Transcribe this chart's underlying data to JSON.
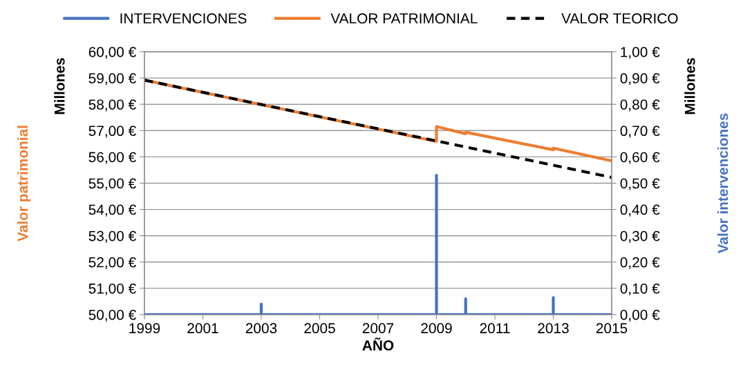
{
  "chart_data": {
    "type": "line",
    "xlabel": "AÑO",
    "ylabel": "Valor patrimonial",
    "y2label": "Valor intervenciones",
    "annotations": [
      "Millones",
      "Millones"
    ],
    "xlim": [
      1999,
      2015
    ],
    "xticks": [
      1999,
      2001,
      2003,
      2005,
      2007,
      2009,
      2011,
      2013,
      2015
    ],
    "ylim": [
      50,
      60
    ],
    "yticks": [
      {
        "value": 50,
        "label": "50,00 €"
      },
      {
        "value": 51,
        "label": "51,00 €"
      },
      {
        "value": 52,
        "label": "52,00 €"
      },
      {
        "value": 53,
        "label": "53,00 €"
      },
      {
        "value": 54,
        "label": "54,00 €"
      },
      {
        "value": 55,
        "label": "55,00 €"
      },
      {
        "value": 56,
        "label": "56,00 €"
      },
      {
        "value": 57,
        "label": "57,00 €"
      },
      {
        "value": 58,
        "label": "58,00 €"
      },
      {
        "value": 59,
        "label": "59,00 €"
      },
      {
        "value": 60,
        "label": "60,00 €"
      }
    ],
    "y2lim": [
      0,
      1
    ],
    "y2ticks": [
      {
        "value": 0,
        "label": "0,00 €"
      },
      {
        "value": 0.1,
        "label": "0,10 €"
      },
      {
        "value": 0.2,
        "label": "0,20 €"
      },
      {
        "value": 0.3,
        "label": "0,30 €"
      },
      {
        "value": 0.4,
        "label": "0,40 €"
      },
      {
        "value": 0.5,
        "label": "0,50 €"
      },
      {
        "value": 0.6,
        "label": "0,60 €"
      },
      {
        "value": 0.7,
        "label": "0,70 €"
      },
      {
        "value": 0.8,
        "label": "0,80 €"
      },
      {
        "value": 0.9,
        "label": "0,90 €"
      },
      {
        "value": 1,
        "label": "1,00 €"
      }
    ],
    "grid": "y",
    "legend": "top",
    "series": [
      {
        "name": "INTERVENCIONES",
        "color": "#4472c4",
        "axis": "y2",
        "line_style": "solid",
        "x": [
          1999,
          2003,
          2003,
          2003,
          2009,
          2009,
          2009,
          2010,
          2010,
          2010,
          2013,
          2013,
          2013,
          2015
        ],
        "values": [
          0,
          0,
          0.04,
          0,
          0,
          0.53,
          0,
          0,
          0.06,
          0,
          0,
          0.065,
          0,
          0
        ]
      },
      {
        "name": "VALOR PATRIMONIAL",
        "color": "#ed7d31",
        "line_style": "solid",
        "x": [
          1999,
          2009,
          2009,
          2010,
          2010,
          2013,
          2013,
          2015
        ],
        "values": [
          58.92,
          56.59,
          57.15,
          56.88,
          56.94,
          56.27,
          56.33,
          55.85
        ]
      },
      {
        "name": "VALOR TEORICO",
        "color": "#000000",
        "line_style": "dashed",
        "x": [
          1999,
          2015
        ],
        "values": [
          58.92,
          55.22
        ]
      }
    ]
  }
}
